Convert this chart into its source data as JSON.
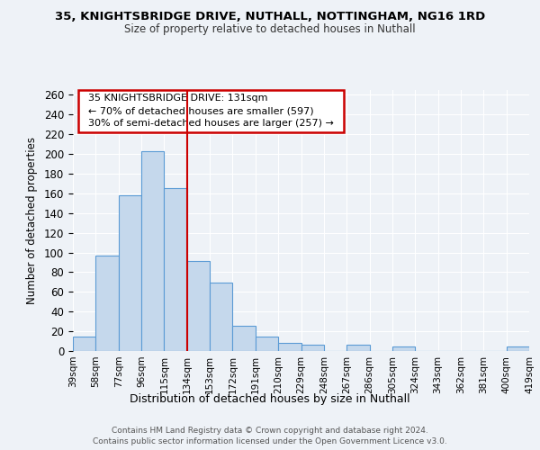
{
  "title_line1": "35, KNIGHTSBRIDGE DRIVE, NUTHALL, NOTTINGHAM, NG16 1RD",
  "title_line2": "Size of property relative to detached houses in Nuthall",
  "xlabel": "Distribution of detached houses by size in Nuthall",
  "ylabel": "Number of detached properties",
  "bar_values": [
    15,
    97,
    158,
    203,
    165,
    91,
    69,
    26,
    15,
    8,
    6,
    0,
    6,
    0,
    5,
    0,
    0,
    0,
    0,
    5
  ],
  "bar_labels": [
    "39sqm",
    "58sqm",
    "77sqm",
    "96sqm",
    "115sqm",
    "134sqm",
    "153sqm",
    "172sqm",
    "191sqm",
    "210sqm",
    "229sqm",
    "248sqm",
    "267sqm",
    "286sqm",
    "305sqm",
    "324sqm",
    "343sqm",
    "362sqm",
    "381sqm",
    "400sqm",
    "419sqm"
  ],
  "bar_color": "#c5d8ec",
  "bar_edge_color": "#5b9bd5",
  "vline_color": "#cc0000",
  "annotation_text": "  35 KNIGHTSBRIDGE DRIVE: 131sqm  \n  ← 70% of detached houses are smaller (597)  \n  30% of semi-detached houses are larger (257) →  ",
  "annotation_box_color": "#cc0000",
  "ylim": [
    0,
    265
  ],
  "yticks": [
    0,
    20,
    40,
    60,
    80,
    100,
    120,
    140,
    160,
    180,
    200,
    220,
    240,
    260
  ],
  "footer_line1": "Contains HM Land Registry data © Crown copyright and database right 2024.",
  "footer_line2": "Contains public sector information licensed under the Open Government Licence v3.0.",
  "background_color": "#eef2f7",
  "grid_color": "#ffffff"
}
